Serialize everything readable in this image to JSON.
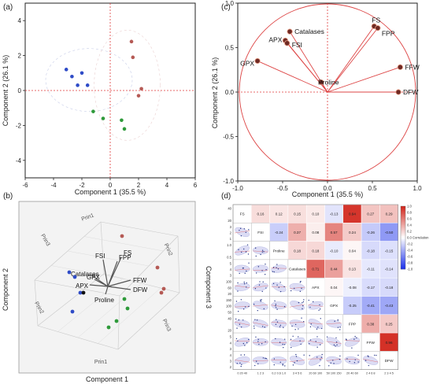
{
  "panels": {
    "a": "(a)",
    "b": "(b)",
    "c": "(c)",
    "d": "(d)"
  },
  "chart_data": [
    {
      "id": "a",
      "type": "scatter",
      "xlabel": "Component 1  (35.5 %)",
      "ylabel": "Component 2  (26.1 %)",
      "xlim": [
        -6,
        6
      ],
      "ylim": [
        -5,
        5
      ],
      "xticks": [
        "-6",
        "-4",
        "-2",
        "0",
        "2",
        "4",
        "6"
      ],
      "yticks": [
        "-4",
        "-2",
        "0",
        "2",
        "4"
      ],
      "series": [
        {
          "color": "#2f4cc7",
          "points": [
            [
              -3.1,
              1.2
            ],
            [
              -2.7,
              0.8
            ],
            [
              -2.0,
              1.0
            ],
            [
              -2.3,
              0.3
            ],
            [
              -1.6,
              0.3
            ]
          ]
        },
        {
          "color": "#2e9a3a",
          "points": [
            [
              -1.2,
              -1.2
            ],
            [
              -0.5,
              -1.6
            ],
            [
              0.8,
              -1.7
            ],
            [
              1.0,
              -2.2
            ]
          ]
        },
        {
          "color": "#b55a55",
          "points": [
            [
              1.5,
              2.8
            ],
            [
              1.6,
              1.9
            ],
            [
              2.2,
              0.1
            ],
            [
              2.0,
              -0.3
            ]
          ]
        }
      ]
    },
    {
      "id": "b",
      "type": "biplot-3d",
      "axis_labels": {
        "left": "Component 2",
        "bottom": "Component 1",
        "right": "Component 3"
      },
      "prin_labels": [
        "Prin1",
        "Prin3",
        "Prin2",
        "Prin2",
        "Prin3",
        "Prin1"
      ],
      "vectors": [
        "FSI",
        "FPP",
        "FS",
        "Catalases",
        "APX",
        "GPX",
        "FFW",
        "DFW",
        "Proline"
      ]
    },
    {
      "id": "c",
      "type": "loading-plot",
      "xlabel": "Component 1  (35.5 %)",
      "ylabel": "Component 2  (26.1 %)",
      "xlim": [
        -1.0,
        1.0
      ],
      "ylim": [
        -1.0,
        1.0
      ],
      "xticks": [
        "-1.0",
        "-0.5",
        "0.0",
        "0.5",
        "1.0"
      ],
      "yticks": [
        "-1.0",
        "-0.5",
        "0.0",
        "0.5",
        "1.0"
      ],
      "loadings": [
        {
          "name": "FS",
          "x": 0.52,
          "y": 0.74
        },
        {
          "name": "FPP",
          "x": 0.56,
          "y": 0.72
        },
        {
          "name": "Catalases",
          "x": -0.42,
          "y": 0.68
        },
        {
          "name": "APX",
          "x": -0.47,
          "y": 0.58
        },
        {
          "name": "FSI",
          "x": -0.45,
          "y": 0.55
        },
        {
          "name": "GPX",
          "x": -0.78,
          "y": 0.35
        },
        {
          "name": "Proline",
          "x": -0.07,
          "y": 0.11
        },
        {
          "name": "FFW",
          "x": 0.81,
          "y": 0.28
        },
        {
          "name": "DFW",
          "x": 0.79,
          "y": 0.0
        }
      ]
    },
    {
      "id": "d",
      "type": "heatmap",
      "variables": [
        "FS",
        "FSI",
        "Proline",
        "Catalases",
        "APX",
        "GPX",
        "FPP",
        "FFW",
        "DFW"
      ],
      "upper_values": [
        [
          "0.16",
          "0.12",
          "0.15",
          "0.10",
          "-0.13",
          "0.94",
          "0.27",
          "0.29"
        ],
        [
          "-0.24",
          "0.37",
          "0.08",
          "0.57",
          "0.24",
          "-0.26",
          "-0.50"
        ],
        [
          "0.18",
          "0.18",
          "-0.10",
          "0.04",
          "-0.18",
          "-0.15"
        ],
        [
          "0.71",
          "0.44",
          "0.13",
          "-0.11",
          "-0.14"
        ],
        [
          "0.04",
          "-0.08",
          "-0.17",
          "-0.18"
        ],
        [
          "-0.25",
          "-0.41",
          "-0.43"
        ],
        [
          "0.38",
          "0.25"
        ],
        [
          "0.96"
        ]
      ],
      "colorbar_ticks": [
        "1.0",
        "0.8",
        "0.6",
        "0.4",
        "0.2",
        "0.0 Correlation",
        "-0.2",
        "-0.4",
        "-0.6",
        "-0.8",
        "-1.0"
      ],
      "left_ticks": [
        [
          "40",
          "20"
        ],
        [
          "3",
          "2",
          "1"
        ],
        [
          "1.0",
          "0.5"
        ],
        [
          "5",
          "4",
          "3"
        ],
        [
          "100",
          "60",
          "20"
        ],
        [
          "150",
          "100",
          "50"
        ],
        [
          "40",
          "20"
        ],
        [
          "5",
          "4",
          "3"
        ],
        [
          "4",
          "3",
          "2"
        ]
      ],
      "bottom_ticks": [
        "0 20 40",
        "1 2 3",
        "0.2 0.6 1.0",
        "3 4 5 6",
        "20 60 100",
        "50 100 150",
        "20 40 60",
        "2 4 6 8",
        "2 3 4 5"
      ]
    }
  ]
}
